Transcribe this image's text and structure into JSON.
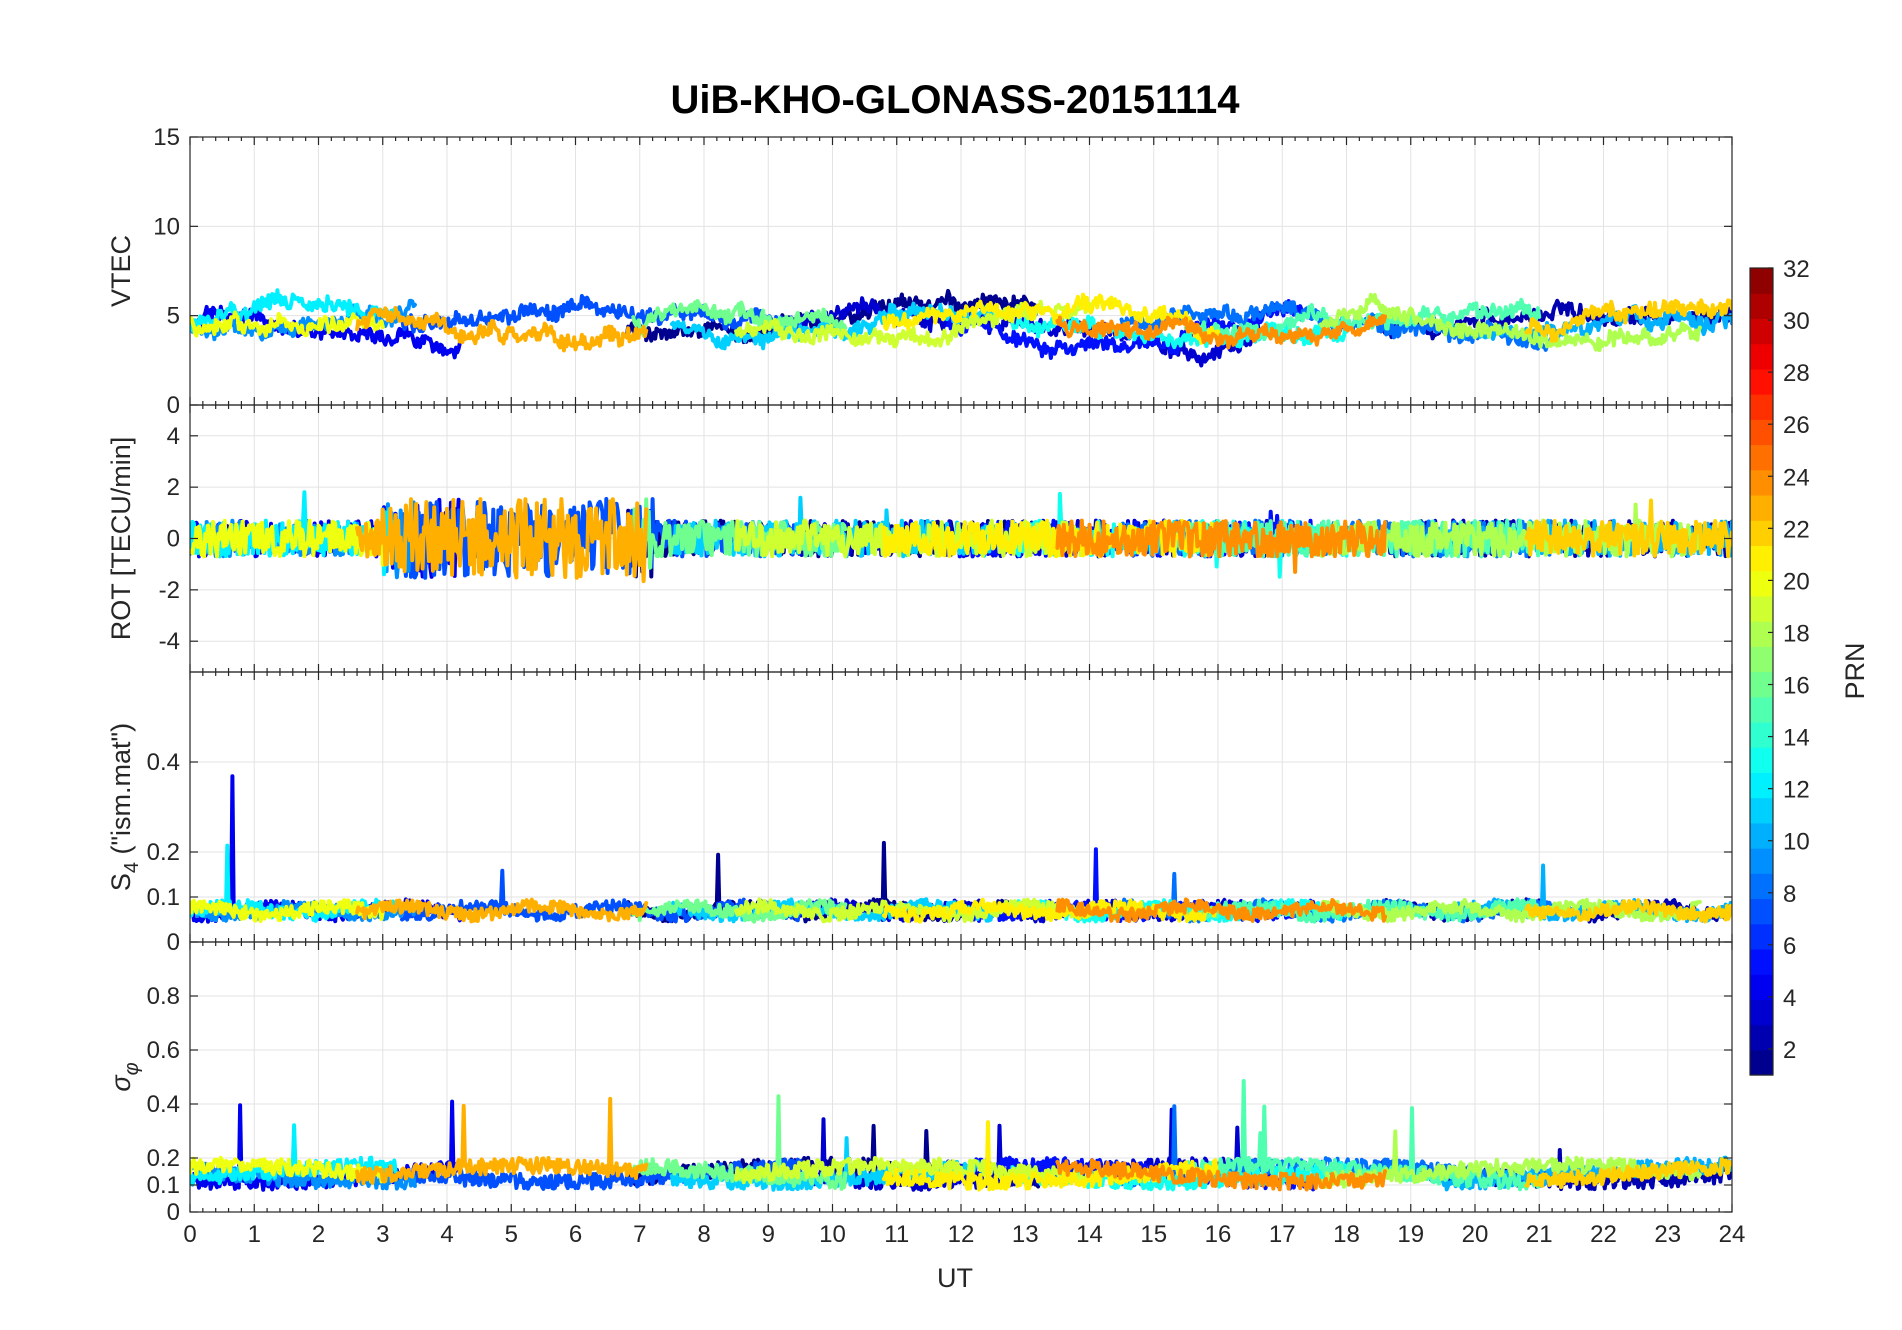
{
  "chart_data": {
    "type": "line",
    "title": "UiB-KHO-GLONASS-20151114",
    "xlabel": "UT",
    "xlim": [
      0,
      24
    ],
    "x_ticks": [
      "0",
      "1",
      "2",
      "3",
      "4",
      "5",
      "6",
      "7",
      "8",
      "9",
      "10",
      "11",
      "12",
      "13",
      "14",
      "15",
      "16",
      "17",
      "18",
      "19",
      "20",
      "21",
      "22",
      "23",
      "24"
    ],
    "grid": true,
    "colorbar": {
      "label": "PRN",
      "range": [
        1,
        32
      ],
      "tick_labels": [
        "2",
        "4",
        "6",
        "8",
        "10",
        "12",
        "14",
        "16",
        "18",
        "20",
        "22",
        "24",
        "26",
        "28",
        "30",
        "32"
      ],
      "colors": [
        "#00008f",
        "#0000b0",
        "#0000d0",
        "#0000f0",
        "#0010ff",
        "#0030ff",
        "#0050ff",
        "#0070ff",
        "#008fff",
        "#00b0ff",
        "#00d0ff",
        "#00f0ff",
        "#10ffef",
        "#30ffcf",
        "#50ffaf",
        "#70ff8f",
        "#8fff70",
        "#afff50",
        "#cfff30",
        "#efff10",
        "#ffef00",
        "#ffcf00",
        "#ffaf00",
        "#ff8f00",
        "#ff7000",
        "#ff5000",
        "#ff3000",
        "#ff1000",
        "#ef0000",
        "#cf0000",
        "#af0000",
        "#8f0000"
      ]
    },
    "panels": [
      {
        "ylabel": "VTEC",
        "ylim": [
          0,
          15
        ],
        "y_tick_labels": [
          "0",
          "5",
          "10",
          "15"
        ],
        "baseline": 4.5,
        "noise": 1.8
      },
      {
        "ylabel": "ROT [TECU/min]",
        "ylim": [
          -5.2,
          5.2
        ],
        "y_tick_labels": [
          "-4",
          "-2",
          "0",
          "2",
          "4"
        ],
        "baseline": 0,
        "noise": 1.4
      },
      {
        "ylabel_main": "S",
        "ylabel_sub": "4",
        "ylabel_tail": " (\"ism.mat\")",
        "ylim": [
          0,
          0.6
        ],
        "y_tick_labels": [
          "0",
          "0.1",
          "0.2",
          "0.4"
        ],
        "baseline": 0.07,
        "noise": 0.03
      },
      {
        "ylabel_main": "σ",
        "ylabel_sub": "φ",
        "ylim": [
          0,
          1
        ],
        "y_tick_labels": [
          "0",
          "0.1",
          "0.2",
          "0.4",
          "0.6",
          "0.8"
        ],
        "baseline": 0.13,
        "noise": 0.06
      }
    ],
    "series": [
      {
        "prn": 1,
        "x_range": [
          6.8,
          13.2
        ]
      },
      {
        "prn": 2,
        "x_range": [
          18.5,
          24
        ]
      },
      {
        "prn": 3,
        "x_range": [
          9.5,
          16.8
        ]
      },
      {
        "prn": 4,
        "x_range": [
          0,
          4.2
        ]
      },
      {
        "prn": 5,
        "x_range": [
          11.8,
          17.5
        ]
      },
      {
        "prn": 7,
        "x_range": [
          3.3,
          9.5
        ]
      },
      {
        "prn": 8,
        "x_range": [
          14.5,
          21.2
        ]
      },
      {
        "prn": 9,
        "x_range": [
          0,
          3.5
        ]
      },
      {
        "prn": 10,
        "x_range": [
          19.5,
          24
        ]
      },
      {
        "prn": 11,
        "x_range": [
          7.5,
          12.5
        ]
      },
      {
        "prn": 12,
        "x_range": [
          0,
          3.2
        ]
      },
      {
        "prn": 13,
        "x_range": [
          12.8,
          18.0
        ]
      },
      {
        "prn": 15,
        "x_range": [
          15.5,
          21.0
        ]
      },
      {
        "prn": 16,
        "x_range": [
          6.9,
          10.2
        ]
      },
      {
        "prn": 18,
        "x_range": [
          17.6,
          23.5
        ]
      },
      {
        "prn": 19,
        "x_range": [
          8.5,
          14.0
        ]
      },
      {
        "prn": 20,
        "x_range": [
          0,
          3.0
        ]
      },
      {
        "prn": 21,
        "x_range": [
          10.8,
          16.0
        ]
      },
      {
        "prn": 22,
        "x_range": [
          20.8,
          24
        ]
      },
      {
        "prn": 23,
        "x_range": [
          2.6,
          7.1
        ]
      },
      {
        "prn": 24,
        "x_range": [
          13.5,
          18.6
        ]
      }
    ]
  }
}
